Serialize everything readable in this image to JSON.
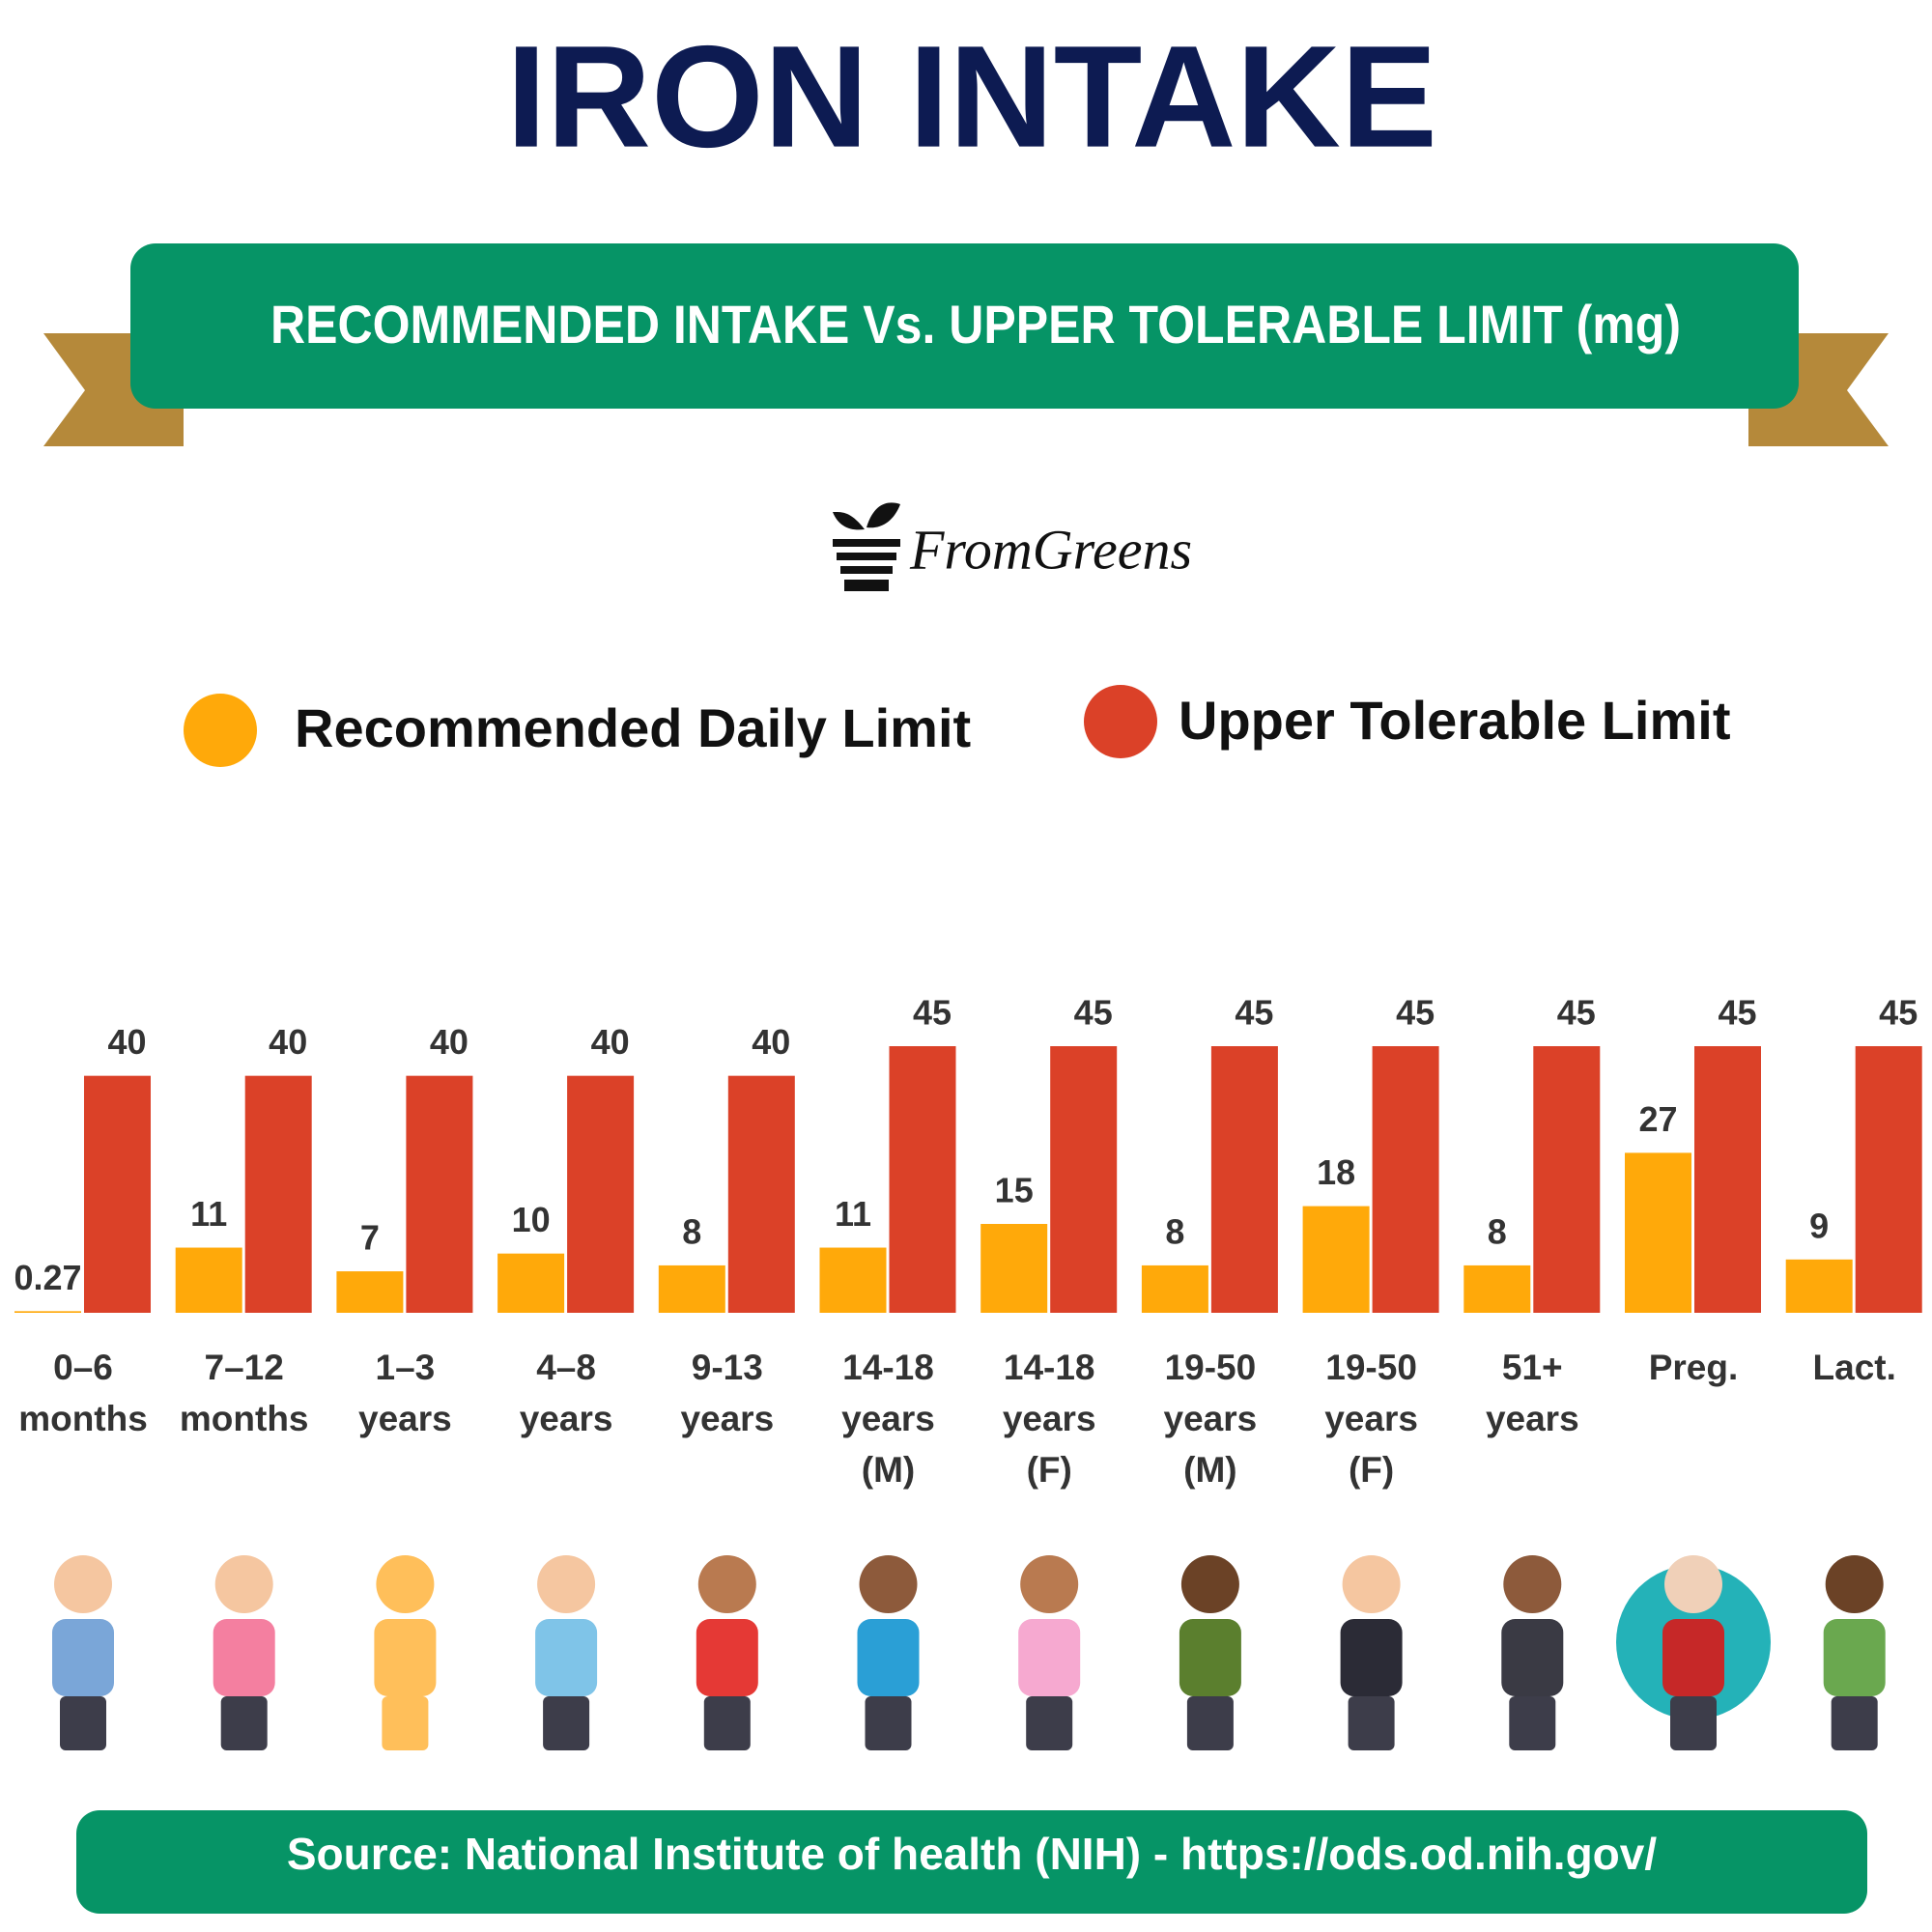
{
  "header": {
    "title": "IRON INTAKE",
    "subtitle": "RECOMMENDED INTAKE Vs. UPPER TOLERABLE LIMIT (mg)",
    "brand": "FromGreens"
  },
  "chart_data": {
    "type": "bar",
    "categories": [
      [
        "0–6",
        "months"
      ],
      [
        "7–12",
        "months"
      ],
      [
        "1–3",
        "years"
      ],
      [
        "4–8",
        "years"
      ],
      [
        "9-13",
        "years"
      ],
      [
        "14-18",
        "years",
        "(M)"
      ],
      [
        "14-18",
        "years",
        "(F)"
      ],
      [
        "19-50",
        "years",
        "(M)"
      ],
      [
        "19-50",
        "years",
        "(F)"
      ],
      [
        "51+",
        "years"
      ],
      [
        "Preg."
      ],
      [
        "Lact."
      ]
    ],
    "series": [
      {
        "name": "Recommended Daily Limit",
        "color": "#ffa90a",
        "values": [
          0.27,
          11,
          7,
          10,
          8,
          11,
          15,
          8,
          18,
          8,
          27,
          9
        ]
      },
      {
        "name": "Upper Tolerable Limit",
        "color": "#db4128",
        "values": [
          40,
          40,
          40,
          40,
          40,
          45,
          45,
          45,
          45,
          45,
          45,
          45
        ]
      }
    ],
    "ylim": [
      0,
      45
    ]
  },
  "footer": {
    "source": "Source: National Institute of health (NIH) - https://ods.od.nih.gov/"
  }
}
